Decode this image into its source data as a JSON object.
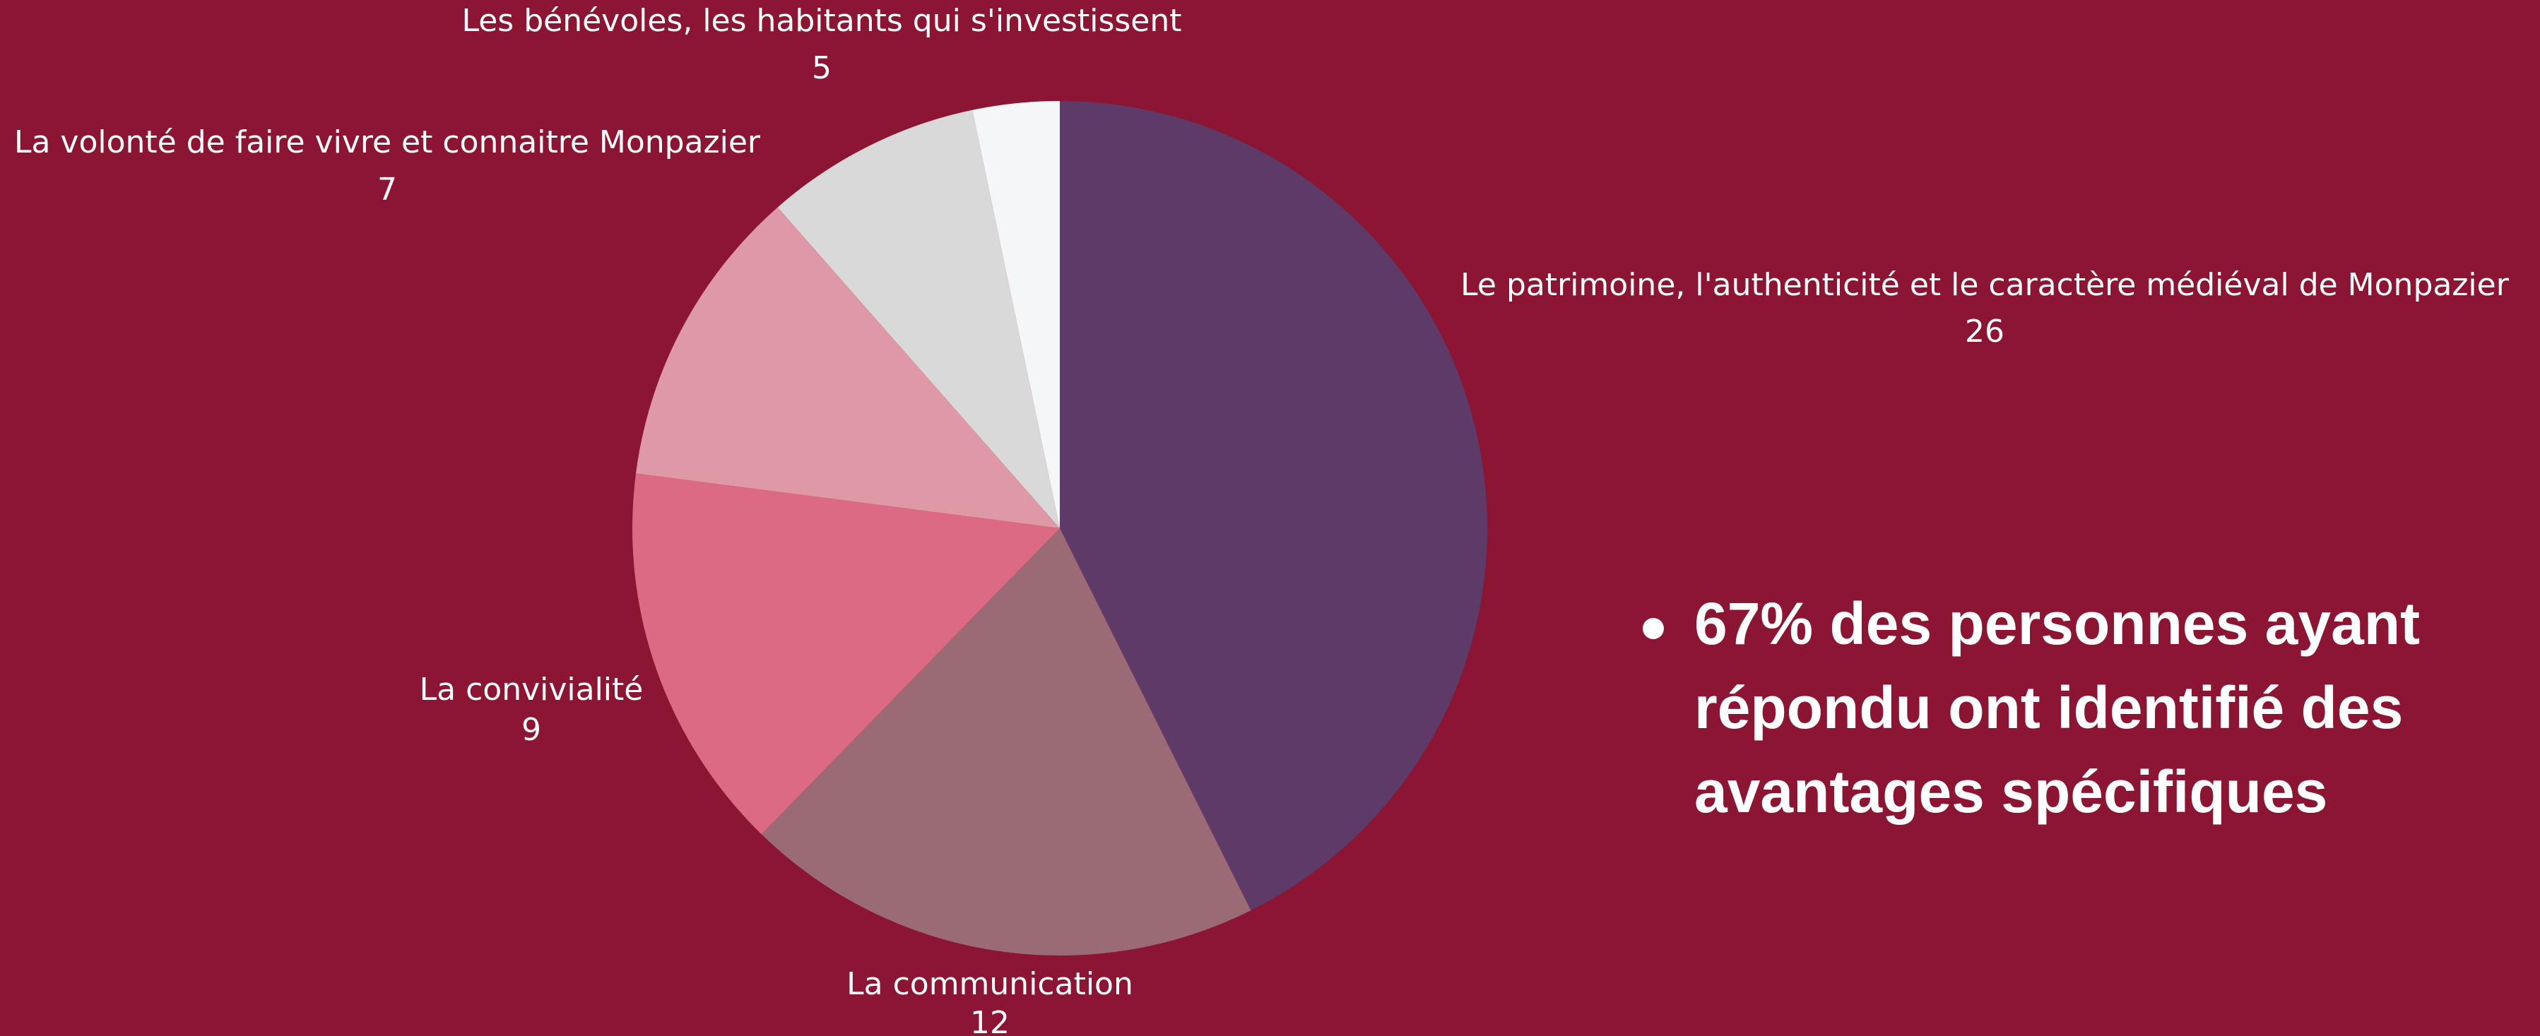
{
  "chart_data": {
    "type": "pie",
    "categories": [
      "Le patrimoine, l'authenticité et le caractère médiéval de Monpazier",
      "La communication",
      "La convivialité",
      "La volonté de faire vivre et connaitre Monpazier",
      "Les bénévoles, les habitants qui s'investissent",
      null
    ],
    "values": [
      26,
      12,
      9,
      7,
      5,
      2
    ],
    "colors": [
      "#5e3a68",
      "#9a6b75",
      "#dc6a85",
      "#de98a6",
      "#d9d9d9",
      "#f5f6f8"
    ]
  },
  "bullet_lines": [
    "67% des personnes ayant",
    "répondu ont identifié des",
    "avantages spécifiques"
  ]
}
